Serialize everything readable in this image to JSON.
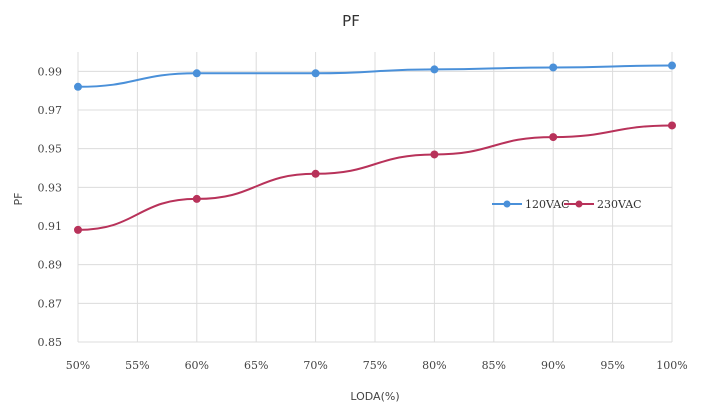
{
  "chart_data": {
    "type": "line",
    "title": "PF",
    "xlabel": "LODA(%)",
    "ylabel": "PF",
    "x": [
      50,
      60,
      70,
      80,
      90,
      100
    ],
    "x_ticks": [
      "50%",
      "55%",
      "60%",
      "65%",
      "70%",
      "75%",
      "80%",
      "85%",
      "90%",
      "95%",
      "100%"
    ],
    "y_ticks": [
      "0.85",
      "0.87",
      "0.89",
      "0.91",
      "0.93",
      "0.95",
      "0.97",
      "0.99"
    ],
    "xlim": [
      50,
      100
    ],
    "ylim": [
      0.85,
      1.0
    ],
    "grid": true,
    "legend_position": "right-middle",
    "series": [
      {
        "name": "120VAC",
        "color": "#4a90d9",
        "values": [
          0.982,
          0.989,
          0.989,
          0.991,
          0.992,
          0.993
        ]
      },
      {
        "name": "230VAC",
        "color": "#b8325a",
        "values": [
          0.908,
          0.924,
          0.937,
          0.947,
          0.956,
          0.962
        ]
      }
    ]
  }
}
